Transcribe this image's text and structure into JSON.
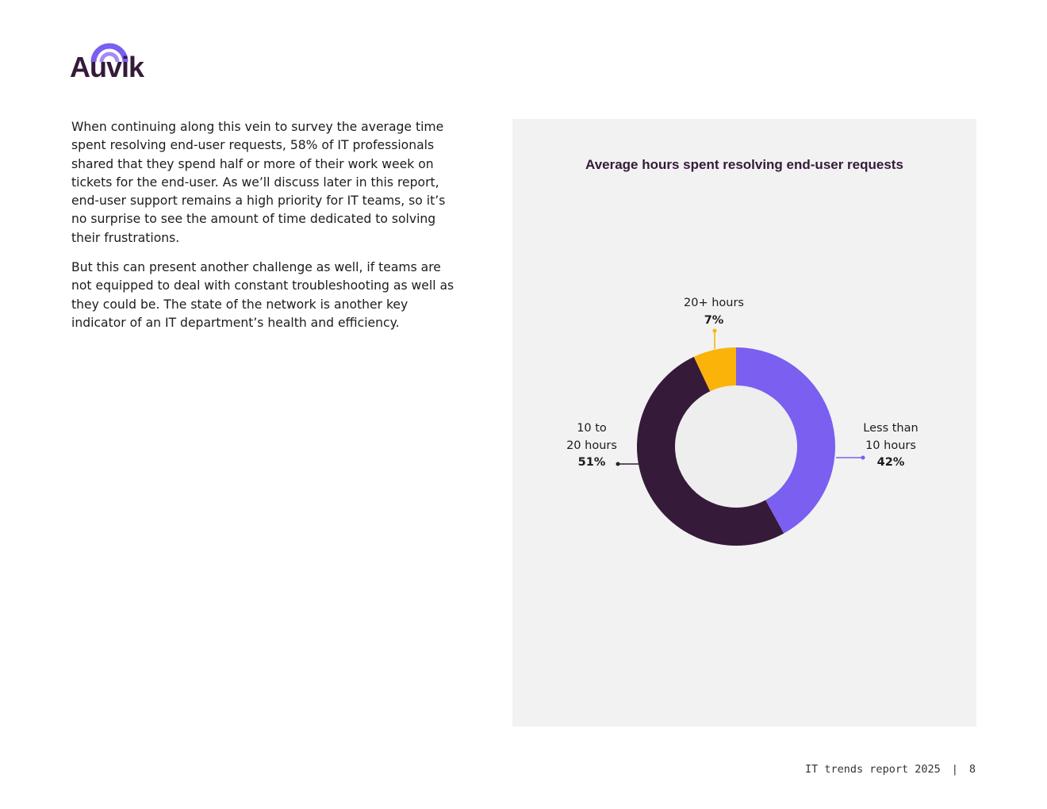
{
  "brand": {
    "logo_text": "Auvik",
    "accent": "#7a5ff0",
    "dark": "#351a3a"
  },
  "body": {
    "paragraph1": "When continuing along this vein to survey the average time spent resolving end-user requests, 58% of IT professionals shared that they spend half or more of their work week on tickets for the end-user. As we’ll discuss later in this report, end-user support remains a high priority for IT teams, so it’s no surprise to see the amount of time dedicated to solving their frustrations.",
    "paragraph2": "But this can present another challenge as well, if teams are not equipped to deal with constant troubleshooting as well as they could be. The state of the network is another key indicator of an IT department’s health and efficiency."
  },
  "chart_data": {
    "type": "pie",
    "title": "Average hours spent resolving end-user requests",
    "categories": [
      "Less than 10 hours",
      "10 to 20 hours",
      "20+ hours"
    ],
    "values": [
      42,
      51,
      7
    ],
    "value_labels": [
      "42%",
      "51%",
      "7%"
    ],
    "label_lines": [
      [
        "Less than",
        "10 hours"
      ],
      [
        "10 to",
        "20 hours"
      ],
      [
        "20+ hours"
      ]
    ],
    "colors": [
      "#7a5ff0",
      "#351a3a",
      "#fbb30a"
    ]
  },
  "footer": {
    "report": "IT trends report 2025",
    "separator": "|",
    "page": "8"
  }
}
